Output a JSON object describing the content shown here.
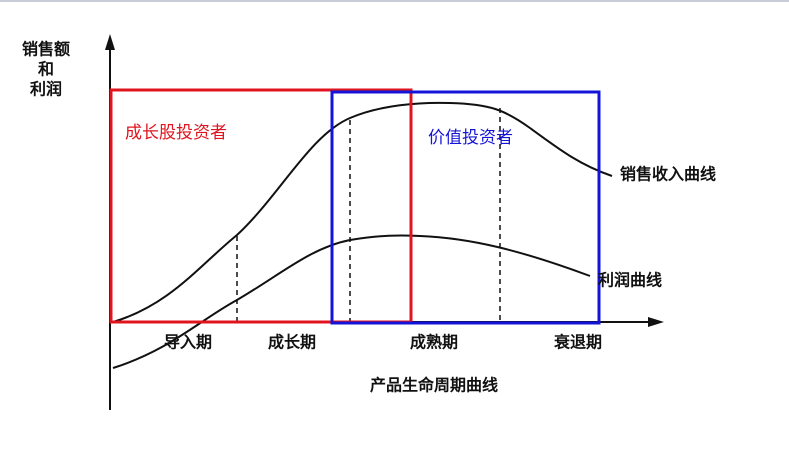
{
  "axis": {
    "y_label_lines": [
      "销售额",
      "和",
      "利润"
    ],
    "x_title": "产品生命周期曲线"
  },
  "stages": [
    "导入期",
    "成长期",
    "成熟期",
    "衰退期"
  ],
  "curves": [
    {
      "label": "销售收入曲线"
    },
    {
      "label": "利润曲线"
    }
  ],
  "boxes": [
    {
      "label": "成长股投资者"
    },
    {
      "label": "价值投资者"
    }
  ]
}
